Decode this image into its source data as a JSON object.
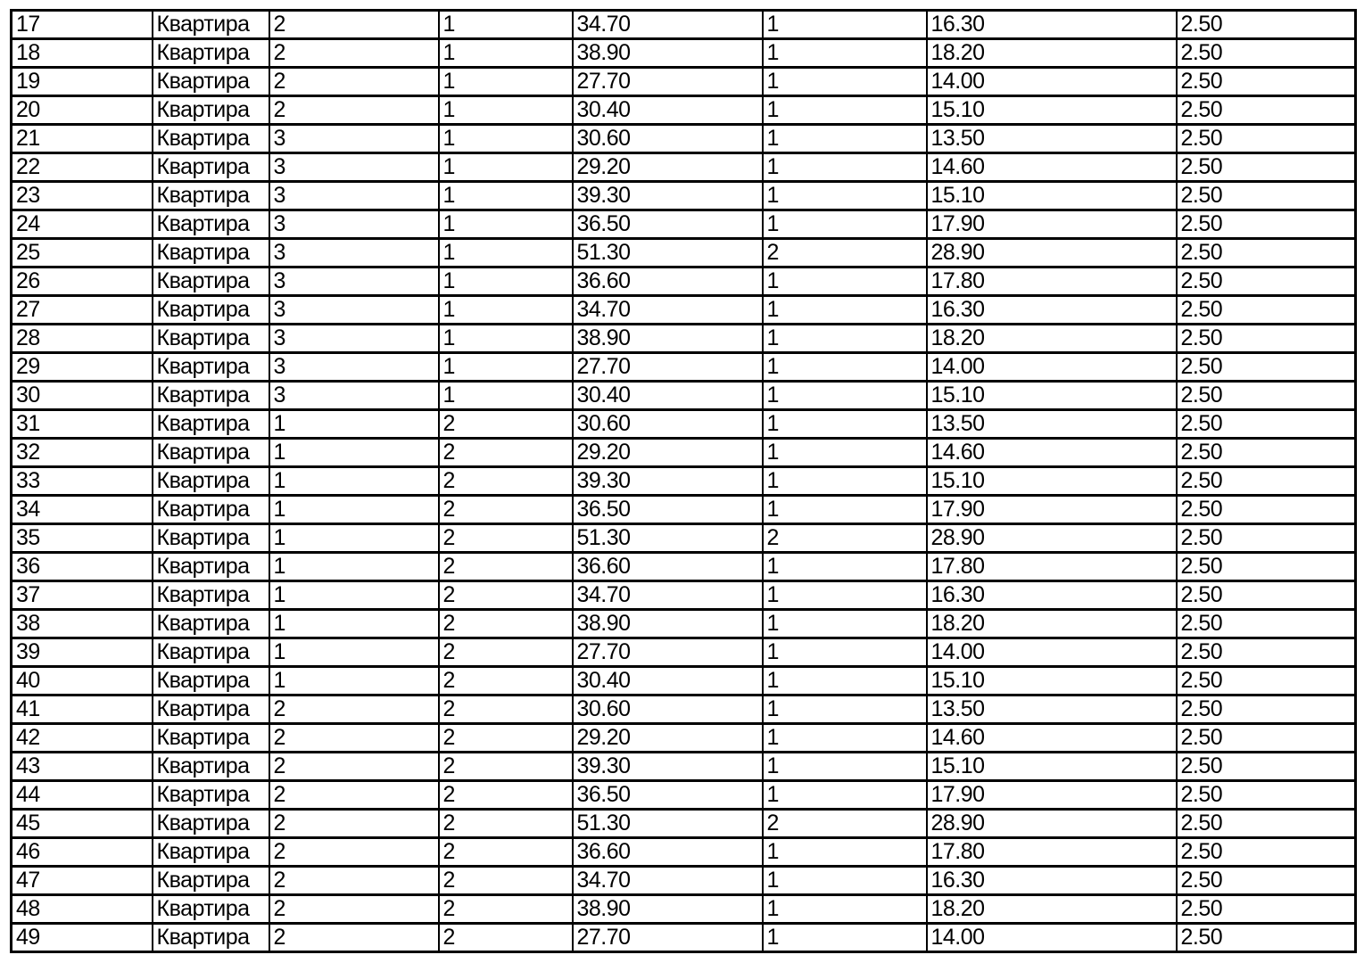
{
  "page": {
    "background_color": "#ffffff",
    "border_color": "#000000",
    "text_color": "#000000"
  },
  "table": {
    "column_keys": [
      "number",
      "type",
      "col3",
      "col4",
      "col5",
      "col6",
      "col7",
      "col8"
    ],
    "rows": [
      [
        "17",
        "Квартира",
        "2",
        "1",
        "34.70",
        "1",
        "16.30",
        "2.50"
      ],
      [
        "18",
        "Квартира",
        "2",
        "1",
        "38.90",
        "1",
        "18.20",
        "2.50"
      ],
      [
        "19",
        "Квартира",
        "2",
        "1",
        "27.70",
        "1",
        "14.00",
        "2.50"
      ],
      [
        "20",
        "Квартира",
        "2",
        "1",
        "30.40",
        "1",
        "15.10",
        "2.50"
      ],
      [
        "21",
        "Квартира",
        "3",
        "1",
        "30.60",
        "1",
        "13.50",
        "2.50"
      ],
      [
        "22",
        "Квартира",
        "3",
        "1",
        "29.20",
        "1",
        "14.60",
        "2.50"
      ],
      [
        "23",
        "Квартира",
        "3",
        "1",
        "39.30",
        "1",
        "15.10",
        "2.50"
      ],
      [
        "24",
        "Квартира",
        "3",
        "1",
        "36.50",
        "1",
        "17.90",
        "2.50"
      ],
      [
        "25",
        "Квартира",
        "3",
        "1",
        "51.30",
        "2",
        "28.90",
        "2.50"
      ],
      [
        "26",
        "Квартира",
        "3",
        "1",
        "36.60",
        "1",
        "17.80",
        "2.50"
      ],
      [
        "27",
        "Квартира",
        "3",
        "1",
        "34.70",
        "1",
        "16.30",
        "2.50"
      ],
      [
        "28",
        "Квартира",
        "3",
        "1",
        "38.90",
        "1",
        "18.20",
        "2.50"
      ],
      [
        "29",
        "Квартира",
        "3",
        "1",
        "27.70",
        "1",
        "14.00",
        "2.50"
      ],
      [
        "30",
        "Квартира",
        "3",
        "1",
        "30.40",
        "1",
        "15.10",
        "2.50"
      ],
      [
        "31",
        "Квартира",
        "1",
        "2",
        "30.60",
        "1",
        "13.50",
        "2.50"
      ],
      [
        "32",
        "Квартира",
        "1",
        "2",
        "29.20",
        "1",
        "14.60",
        "2.50"
      ],
      [
        "33",
        "Квартира",
        "1",
        "2",
        "39.30",
        "1",
        "15.10",
        "2.50"
      ],
      [
        "34",
        "Квартира",
        "1",
        "2",
        "36.50",
        "1",
        "17.90",
        "2.50"
      ],
      [
        "35",
        "Квартира",
        "1",
        "2",
        "51.30",
        "2",
        "28.90",
        "2.50"
      ],
      [
        "36",
        "Квартира",
        "1",
        "2",
        "36.60",
        "1",
        "17.80",
        "2.50"
      ],
      [
        "37",
        "Квартира",
        "1",
        "2",
        "34.70",
        "1",
        "16.30",
        "2.50"
      ],
      [
        "38",
        "Квартира",
        "1",
        "2",
        "38.90",
        "1",
        "18.20",
        "2.50"
      ],
      [
        "39",
        "Квартира",
        "1",
        "2",
        "27.70",
        "1",
        "14.00",
        "2.50"
      ],
      [
        "40",
        "Квартира",
        "1",
        "2",
        "30.40",
        "1",
        "15.10",
        "2.50"
      ],
      [
        "41",
        "Квартира",
        "2",
        "2",
        "30.60",
        "1",
        "13.50",
        "2.50"
      ],
      [
        "42",
        "Квартира",
        "2",
        "2",
        "29.20",
        "1",
        "14.60",
        "2.50"
      ],
      [
        "43",
        "Квартира",
        "2",
        "2",
        "39.30",
        "1",
        "15.10",
        "2.50"
      ],
      [
        "44",
        "Квартира",
        "2",
        "2",
        "36.50",
        "1",
        "17.90",
        "2.50"
      ],
      [
        "45",
        "Квартира",
        "2",
        "2",
        "51.30",
        "2",
        "28.90",
        "2.50"
      ],
      [
        "46",
        "Квартира",
        "2",
        "2",
        "36.60",
        "1",
        "17.80",
        "2.50"
      ],
      [
        "47",
        "Квартира",
        "2",
        "2",
        "34.70",
        "1",
        "16.30",
        "2.50"
      ],
      [
        "48",
        "Квартира",
        "2",
        "2",
        "38.90",
        "1",
        "18.20",
        "2.50"
      ],
      [
        "49",
        "Квартира",
        "2",
        "2",
        "27.70",
        "1",
        "14.00",
        "2.50"
      ]
    ]
  }
}
